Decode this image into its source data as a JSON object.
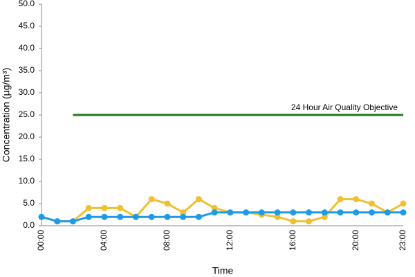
{
  "chart_data": {
    "type": "line",
    "x_label": "Time",
    "y_label": "Concentration (µg/m³)",
    "categories": [
      "00:00",
      null,
      null,
      null,
      "04:00",
      null,
      null,
      null,
      "08:00",
      null,
      null,
      null,
      "12:00",
      null,
      null,
      null,
      "16:00",
      null,
      null,
      null,
      "20:00",
      null,
      null,
      "23:00"
    ],
    "series": [
      {
        "name": "24 Hour Air Quality Objective",
        "color": "#1a7a1a",
        "markers": false,
        "values": [
          null,
          null,
          25,
          25,
          25,
          25,
          25,
          25,
          25,
          25,
          25,
          25,
          25,
          25,
          25,
          25,
          25,
          25,
          25,
          25,
          25,
          25,
          25,
          25
        ]
      },
      {
        "color": "#f0c030",
        "markers": true,
        "values": [
          2,
          1,
          1,
          4,
          4,
          4,
          2,
          6,
          5,
          3,
          6,
          4,
          3,
          3,
          2.5,
          2,
          1,
          1,
          2,
          6,
          6,
          5,
          3,
          5
        ]
      },
      {
        "color": "#1e9be8",
        "markers": true,
        "values": [
          2,
          1,
          1,
          2,
          2,
          2,
          2,
          2,
          2,
          2,
          2,
          3,
          3,
          3,
          3,
          3,
          3,
          3,
          3,
          3,
          3,
          3,
          3,
          3
        ]
      }
    ],
    "ylim": [
      0,
      50
    ],
    "yticks": [
      {
        "value": 0,
        "label": "0.0"
      },
      {
        "value": 5,
        "label": "5.0"
      },
      {
        "value": 10,
        "label": "10.0"
      },
      {
        "value": 15,
        "label": "15.0"
      },
      {
        "value": 20,
        "label": "20.0"
      },
      {
        "value": 25,
        "label": "25.0"
      },
      {
        "value": 30,
        "label": "30.0"
      },
      {
        "value": 35,
        "label": "35.0"
      },
      {
        "value": 40,
        "label": "40.0"
      },
      {
        "value": 45,
        "label": "45.0"
      },
      {
        "value": 50,
        "label": "50.0"
      }
    ],
    "grid": false
  }
}
